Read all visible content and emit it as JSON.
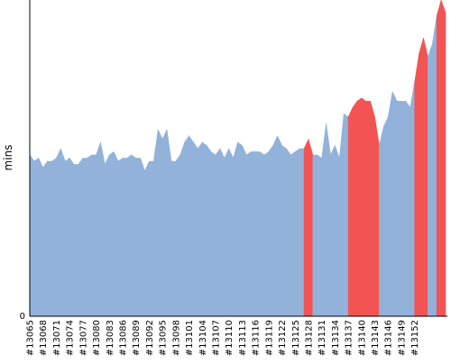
{
  "chart_data": {
    "type": "area",
    "title": "",
    "xlabel": "",
    "ylabel": "mins",
    "y_tick_labels": [
      "0"
    ],
    "ylim": [
      0,
      100
    ],
    "grid": false,
    "legend": "none",
    "colors": {
      "ok": "#92b2da",
      "fail": "#f25454",
      "axis": "#000000"
    },
    "x_tick_labels": [
      "#13065",
      "#13068",
      "#13071",
      "#13074",
      "#13077",
      "#13080",
      "#13083",
      "#13086",
      "#13089",
      "#13092",
      "#13095",
      "#13098",
      "#13101",
      "#13104",
      "#13107",
      "#13110",
      "#13113",
      "#13116",
      "#13119",
      "#13122",
      "#13125",
      "#13128",
      "#13131",
      "#13134",
      "#13137",
      "#13140",
      "#13143",
      "#13146",
      "#13149",
      "#13152"
    ],
    "builds_first": 13065,
    "values": [
      51,
      49,
      50,
      47,
      49,
      49,
      50,
      53,
      49,
      50,
      48,
      48,
      50,
      50,
      51,
      51,
      55,
      48,
      51,
      52,
      49,
      50,
      50,
      51,
      50,
      50,
      46,
      49,
      49,
      59,
      56,
      59,
      49,
      49,
      51,
      55,
      57,
      55,
      53,
      55,
      54,
      52,
      51,
      53,
      50,
      53,
      50,
      55,
      54,
      51,
      52,
      52,
      52,
      51,
      52,
      54,
      57,
      54,
      53,
      51,
      52,
      53,
      53,
      56,
      51,
      51,
      50,
      61,
      51,
      54,
      50,
      64,
      63,
      66,
      68,
      69,
      68,
      68,
      63,
      54,
      60,
      63,
      71,
      68,
      68,
      68,
      66,
      74,
      83,
      88,
      82,
      86,
      95,
      100,
      96
    ],
    "status": [
      "ok",
      "ok",
      "ok",
      "ok",
      "ok",
      "ok",
      "ok",
      "ok",
      "ok",
      "ok",
      "ok",
      "ok",
      "ok",
      "ok",
      "ok",
      "ok",
      "ok",
      "ok",
      "ok",
      "ok",
      "ok",
      "ok",
      "ok",
      "ok",
      "ok",
      "ok",
      "ok",
      "ok",
      "ok",
      "ok",
      "ok",
      "ok",
      "ok",
      "ok",
      "ok",
      "ok",
      "ok",
      "ok",
      "ok",
      "ok",
      "ok",
      "ok",
      "ok",
      "ok",
      "ok",
      "ok",
      "ok",
      "ok",
      "ok",
      "ok",
      "ok",
      "ok",
      "ok",
      "ok",
      "ok",
      "ok",
      "ok",
      "ok",
      "ok",
      "ok",
      "ok",
      "ok",
      "ok",
      "fail",
      "fail",
      "ok",
      "ok",
      "ok",
      "ok",
      "ok",
      "ok",
      "ok",
      "ok",
      "fail",
      "fail",
      "fail",
      "fail",
      "fail",
      "fail",
      "fail",
      "ok",
      "ok",
      "ok",
      "ok",
      "ok",
      "ok",
      "ok",
      "ok",
      "fail",
      "fail",
      "fail",
      "ok",
      "ok",
      "fail",
      "fail"
    ]
  }
}
